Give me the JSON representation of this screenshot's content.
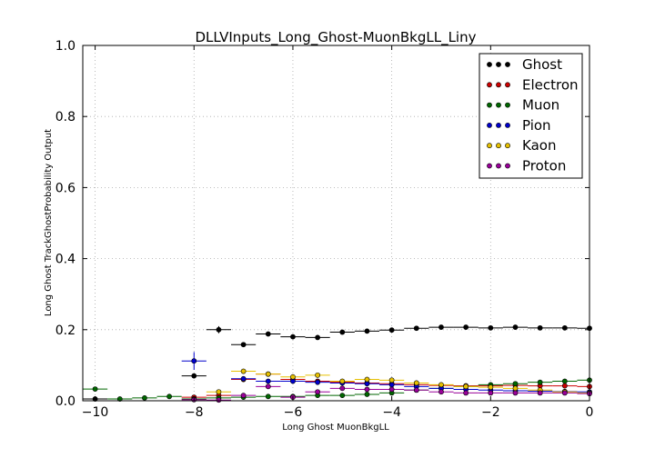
{
  "chart_data": {
    "type": "scatter",
    "title": "DLLVInputs_Long_Ghost-MuonBkgLL_Liny",
    "xlabel": "Long Ghost MuonBkgLL",
    "ylabel": "Long Ghost TrackGhostProbability Output",
    "xlim": [
      -10.25,
      0
    ],
    "ylim": [
      0,
      1.0
    ],
    "x_ticks": [
      -10,
      -8,
      -6,
      -4,
      -2,
      0
    ],
    "x_tick_labels": [
      "−10",
      "−8",
      "−6",
      "−4",
      "−2",
      "0"
    ],
    "y_ticks": [
      0.0,
      0.2,
      0.4,
      0.6,
      0.8,
      1.0
    ],
    "y_tick_labels": [
      "0.0",
      "0.2",
      "0.4",
      "0.6",
      "0.8",
      "1.0"
    ],
    "grid": true,
    "legend_position": "top-right",
    "bin_half_width": 0.25,
    "series": [
      {
        "name": "Ghost",
        "color": "#000000",
        "points": [
          {
            "x": -10.0,
            "y": 0.005
          },
          {
            "x": -8.0,
            "y": 0.07
          },
          {
            "x": -7.5,
            "y": 0.2,
            "err": 0.01
          },
          {
            "x": -7.0,
            "y": 0.158
          },
          {
            "x": -6.5,
            "y": 0.188
          },
          {
            "x": -6.0,
            "y": 0.18
          },
          {
            "x": -5.5,
            "y": 0.178
          },
          {
            "x": -5.0,
            "y": 0.193
          },
          {
            "x": -4.5,
            "y": 0.196
          },
          {
            "x": -4.0,
            "y": 0.199
          },
          {
            "x": -3.5,
            "y": 0.204
          },
          {
            "x": -3.0,
            "y": 0.207
          },
          {
            "x": -2.5,
            "y": 0.207
          },
          {
            "x": -2.0,
            "y": 0.205
          },
          {
            "x": -1.5,
            "y": 0.207
          },
          {
            "x": -1.0,
            "y": 0.205
          },
          {
            "x": -0.5,
            "y": 0.205
          },
          {
            "x": 0.0,
            "y": 0.204
          }
        ]
      },
      {
        "name": "Electron",
        "color": "#cc0000",
        "points": [
          {
            "x": -8.0,
            "y": 0.01
          },
          {
            "x": -7.5,
            "y": 0.015
          },
          {
            "x": -7.0,
            "y": 0.06
          },
          {
            "x": -6.5,
            "y": 0.075
          },
          {
            "x": -6.0,
            "y": 0.06
          },
          {
            "x": -5.5,
            "y": 0.055
          },
          {
            "x": -5.0,
            "y": 0.052
          },
          {
            "x": -4.5,
            "y": 0.05
          },
          {
            "x": -4.0,
            "y": 0.048
          },
          {
            "x": -3.5,
            "y": 0.045
          },
          {
            "x": -3.0,
            "y": 0.043
          },
          {
            "x": -2.5,
            "y": 0.042
          },
          {
            "x": -2.0,
            "y": 0.042
          },
          {
            "x": -1.5,
            "y": 0.043
          },
          {
            "x": -1.0,
            "y": 0.042
          },
          {
            "x": -0.5,
            "y": 0.042
          },
          {
            "x": 0.0,
            "y": 0.04
          }
        ]
      },
      {
        "name": "Muon",
        "color": "#006600",
        "points": [
          {
            "x": -10.0,
            "y": 0.033
          },
          {
            "x": -9.5,
            "y": 0.005
          },
          {
            "x": -9.0,
            "y": 0.008
          },
          {
            "x": -8.5,
            "y": 0.012
          },
          {
            "x": -8.0,
            "y": 0.005
          },
          {
            "x": -7.5,
            "y": 0.008
          },
          {
            "x": -7.0,
            "y": 0.01
          },
          {
            "x": -6.5,
            "y": 0.012
          },
          {
            "x": -6.0,
            "y": 0.012
          },
          {
            "x": -5.5,
            "y": 0.015
          },
          {
            "x": -5.0,
            "y": 0.015
          },
          {
            "x": -4.5,
            "y": 0.018
          },
          {
            "x": -4.0,
            "y": 0.022
          },
          {
            "x": -3.5,
            "y": 0.03
          },
          {
            "x": -3.0,
            "y": 0.035
          },
          {
            "x": -2.5,
            "y": 0.04
          },
          {
            "x": -2.0,
            "y": 0.045
          },
          {
            "x": -1.5,
            "y": 0.048
          },
          {
            "x": -1.0,
            "y": 0.052
          },
          {
            "x": -0.5,
            "y": 0.055
          },
          {
            "x": 0.0,
            "y": 0.058
          }
        ]
      },
      {
        "name": "Pion",
        "color": "#0000cc",
        "points": [
          {
            "x": -8.0,
            "y": 0.112,
            "err": 0.025
          },
          {
            "x": -7.0,
            "y": 0.062
          },
          {
            "x": -6.5,
            "y": 0.055
          },
          {
            "x": -6.0,
            "y": 0.055
          },
          {
            "x": -5.5,
            "y": 0.052
          },
          {
            "x": -5.0,
            "y": 0.05
          },
          {
            "x": -4.5,
            "y": 0.048
          },
          {
            "x": -4.0,
            "y": 0.045
          },
          {
            "x": -3.5,
            "y": 0.04
          },
          {
            "x": -3.0,
            "y": 0.035
          },
          {
            "x": -2.5,
            "y": 0.032
          },
          {
            "x": -2.0,
            "y": 0.03
          },
          {
            "x": -1.5,
            "y": 0.028
          },
          {
            "x": -1.0,
            "y": 0.027
          },
          {
            "x": -0.5,
            "y": 0.026
          },
          {
            "x": 0.0,
            "y": 0.025
          }
        ]
      },
      {
        "name": "Kaon",
        "color": "#e6c000",
        "points": [
          {
            "x": -7.5,
            "y": 0.025
          },
          {
            "x": -7.0,
            "y": 0.083
          },
          {
            "x": -6.5,
            "y": 0.075
          },
          {
            "x": -6.0,
            "y": 0.067
          },
          {
            "x": -5.5,
            "y": 0.072
          },
          {
            "x": -5.0,
            "y": 0.055
          },
          {
            "x": -4.5,
            "y": 0.06
          },
          {
            "x": -4.0,
            "y": 0.058
          },
          {
            "x": -3.5,
            "y": 0.05
          },
          {
            "x": -3.0,
            "y": 0.045
          },
          {
            "x": -2.5,
            "y": 0.04
          },
          {
            "x": -2.0,
            "y": 0.038
          },
          {
            "x": -1.5,
            "y": 0.035
          },
          {
            "x": -1.0,
            "y": 0.03
          },
          {
            "x": -0.5,
            "y": 0.025
          },
          {
            "x": 0.0,
            "y": 0.022
          }
        ]
      },
      {
        "name": "Proton",
        "color": "#990099",
        "points": [
          {
            "x": -8.0,
            "y": 0.003
          },
          {
            "x": -7.5,
            "y": 0.002
          },
          {
            "x": -7.0,
            "y": 0.015
          },
          {
            "x": -6.5,
            "y": 0.04
          },
          {
            "x": -6.0,
            "y": 0.01
          },
          {
            "x": -5.5,
            "y": 0.025
          },
          {
            "x": -5.0,
            "y": 0.035
          },
          {
            "x": -4.5,
            "y": 0.032
          },
          {
            "x": -4.0,
            "y": 0.032
          },
          {
            "x": -3.5,
            "y": 0.03
          },
          {
            "x": -3.0,
            "y": 0.025
          },
          {
            "x": -2.5,
            "y": 0.022
          },
          {
            "x": -2.0,
            "y": 0.022
          },
          {
            "x": -1.5,
            "y": 0.022
          },
          {
            "x": -1.0,
            "y": 0.022
          },
          {
            "x": -0.5,
            "y": 0.022
          },
          {
            "x": 0.0,
            "y": 0.02
          }
        ]
      }
    ]
  }
}
